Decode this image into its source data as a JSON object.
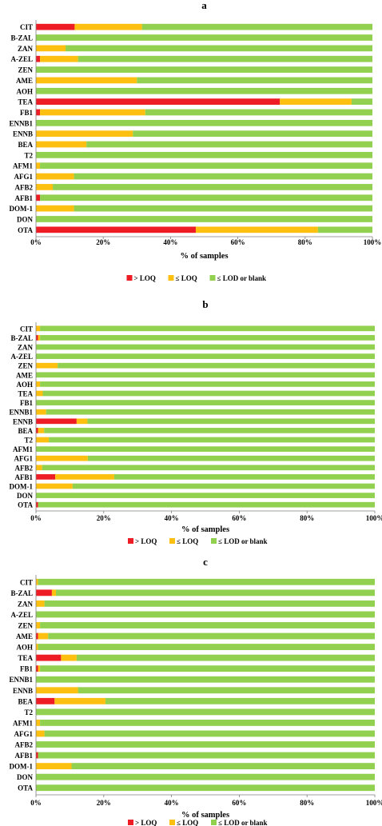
{
  "colors": {
    "gt_loq": "#ee1c25",
    "le_loq": "#fdc010",
    "le_lod": "#92d050",
    "grid": "#cfcfcf",
    "axis": "#7f7f7f"
  },
  "chart_data": [
    {
      "type": "bar",
      "orientation": "horizontal",
      "stacked": true,
      "title": "a",
      "xlabel": "% of samples",
      "ylabel": "",
      "xlim": [
        0,
        100
      ],
      "xticks": [
        "0%",
        "20%",
        "40%",
        "60%",
        "80%",
        "100%"
      ],
      "grid": false,
      "legend": "bottom",
      "categories": [
        "CIT",
        "B-ZAL",
        "ZAN",
        "A-ZEL",
        "ZEN",
        "AME",
        "AOH",
        "TEA",
        "FB1",
        "ENNB1",
        "ENNB",
        "BEA",
        "T2",
        "AFM1",
        "AFG1",
        "AFB2",
        "AFB1",
        "DOM-1",
        "DON",
        "OTA"
      ],
      "series": [
        {
          "name": "> LOQ",
          "values": [
            11.5,
            0,
            0,
            1.2,
            0,
            0,
            0,
            72.5,
            1.2,
            0,
            0,
            0,
            0,
            0,
            0,
            0,
            1.2,
            0,
            0,
            47.5
          ]
        },
        {
          "name": "≤ LOQ",
          "values": [
            20,
            0,
            8.8,
            11.3,
            0,
            30,
            0,
            21.3,
            31.3,
            0,
            28.8,
            15,
            0,
            1.2,
            11.3,
            5,
            0,
            11.3,
            0,
            36.3
          ]
        },
        {
          "name": "≤ LOD or blank",
          "values": [
            68.5,
            100,
            91.2,
            87.5,
            100,
            70,
            100,
            6.2,
            67.5,
            100,
            71.2,
            85,
            100,
            98.8,
            88.7,
            95,
            98.8,
            88.7,
            100,
            16.2
          ]
        }
      ]
    },
    {
      "type": "bar",
      "orientation": "horizontal",
      "stacked": true,
      "title": "b",
      "xlabel": "% of samples",
      "ylabel": "",
      "xlim": [
        0,
        100
      ],
      "xticks": [
        "0%",
        "20%",
        "40%",
        "60%",
        "80%",
        "100%"
      ],
      "grid": false,
      "legend": "bottom",
      "categories": [
        "CIT",
        "B-ZAL",
        "ZAN",
        "A-ZEL",
        "ZEN",
        "AME",
        "AOH",
        "TEA",
        "FB1",
        "ENNB1",
        "ENNB",
        "BEA",
        "T2",
        "AFM1",
        "AFG1",
        "AFB2",
        "AFB1",
        "DOM-1",
        "DON",
        "OTA"
      ],
      "series": [
        {
          "name": "> LOQ",
          "values": [
            0,
            0.6,
            0,
            0,
            0,
            0,
            0,
            0,
            0,
            0,
            12,
            0.6,
            0,
            0,
            0,
            0,
            5.7,
            0,
            0,
            0.6
          ]
        },
        {
          "name": "≤ LOQ",
          "values": [
            1.2,
            0.6,
            0,
            0,
            6.4,
            0,
            1.2,
            2,
            0,
            3,
            3.2,
            1.8,
            3.8,
            0,
            15.3,
            1.8,
            17.4,
            10.8,
            0,
            0
          ]
        },
        {
          "name": "≤ LOD or blank",
          "values": [
            98.8,
            98.8,
            100,
            100,
            93.6,
            100,
            98.8,
            98,
            100,
            97,
            84.8,
            97.6,
            96.2,
            100,
            84.7,
            98.2,
            76.9,
            89.2,
            100,
            99.4
          ]
        }
      ]
    },
    {
      "type": "bar",
      "orientation": "horizontal",
      "stacked": true,
      "title": "c",
      "xlabel": "% of samples",
      "ylabel": "",
      "xlim": [
        0,
        100
      ],
      "xticks": [
        "0%",
        "20%",
        "40%",
        "60%",
        "80%",
        "100%"
      ],
      "grid": false,
      "legend": "bottom",
      "categories": [
        "CIT",
        "B-ZAL",
        "ZAN",
        "A-ZEL",
        "ZEN",
        "AME",
        "AOH",
        "TEA",
        "FB1",
        "ENNB1",
        "ENNB",
        "BEA",
        "T2",
        "AFM1",
        "AFG1",
        "AFB2",
        "AFB1",
        "DOM-1",
        "DON",
        "OTA"
      ],
      "series": [
        {
          "name": "> LOQ",
          "values": [
            0,
            4.7,
            0,
            0,
            0,
            0.6,
            0,
            7.4,
            0.6,
            0,
            0,
            5.5,
            0,
            0,
            0,
            0,
            0.6,
            0,
            0,
            0
          ]
        },
        {
          "name": "≤ LOQ",
          "values": [
            0.6,
            1.2,
            2.5,
            0,
            1.2,
            3,
            0.6,
            4.6,
            0.6,
            0,
            12.4,
            15,
            0,
            1.2,
            2.5,
            0,
            0,
            10.5,
            0,
            0
          ]
        },
        {
          "name": "≤ LOD or blank",
          "values": [
            99.4,
            94.1,
            97.5,
            100,
            98.8,
            96.4,
            99.4,
            88,
            98.8,
            100,
            87.6,
            79.5,
            100,
            98.8,
            97.5,
            100,
            99.4,
            89.5,
            100,
            100
          ]
        }
      ]
    }
  ]
}
